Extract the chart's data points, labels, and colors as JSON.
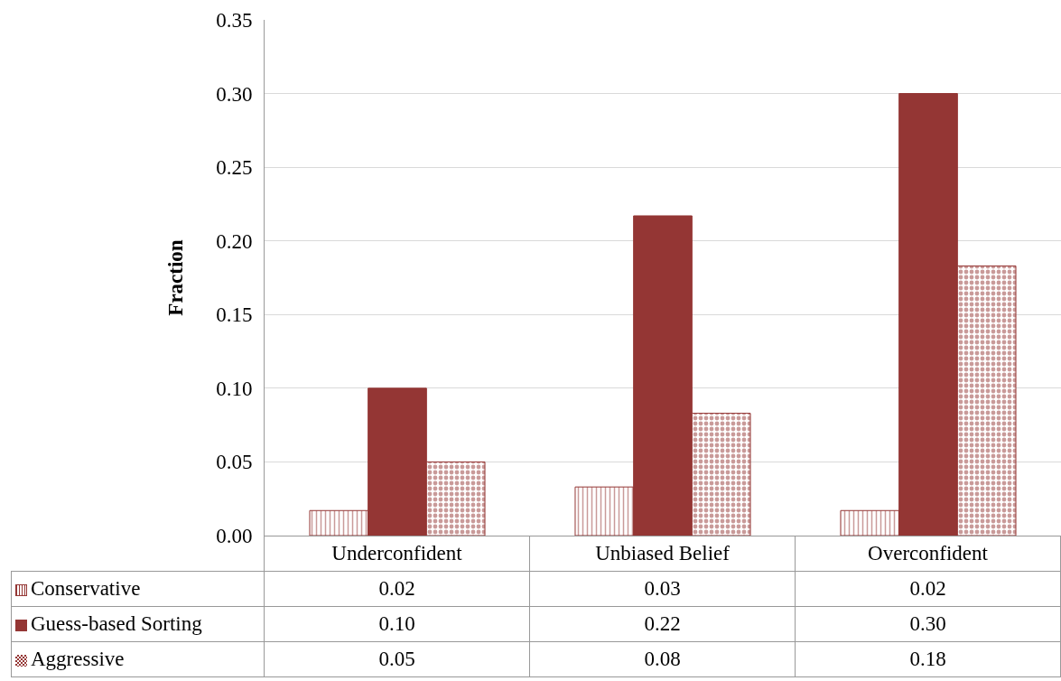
{
  "chart_data": {
    "type": "bar",
    "ylabel": "Fraction",
    "categories": [
      "Underconfident",
      "Unbiased Belief",
      "Overconfident"
    ],
    "series": [
      {
        "name": "Conservative",
        "color": "#943634",
        "values": [
          0.017,
          0.033,
          0.017
        ],
        "value_labels": [
          "0.02",
          "0.03",
          "0.02"
        ]
      },
      {
        "name": "Guess-based Sorting",
        "color": "#943634",
        "values": [
          0.1,
          0.217,
          0.3
        ],
        "value_labels": [
          "0.10",
          "0.22",
          "0.30"
        ]
      },
      {
        "name": "Aggressive",
        "color": "#943634",
        "values": [
          0.05,
          0.083,
          0.183
        ],
        "value_labels": [
          "0.05",
          "0.08",
          "0.18"
        ]
      }
    ],
    "ylim": [
      0,
      0.35
    ],
    "yticks": [
      {
        "value": 0,
        "label": "0.00"
      },
      {
        "value": 0.05,
        "label": "0.05"
      },
      {
        "value": 0.1,
        "label": "0.10"
      },
      {
        "value": 0.15,
        "label": "0.15"
      },
      {
        "value": 0.2,
        "label": "0.20"
      },
      {
        "value": 0.25,
        "label": "0.25"
      },
      {
        "value": 0.3,
        "label": "0.30"
      },
      {
        "value": 0.35,
        "label": "0.35"
      }
    ],
    "grid": "y",
    "legend": "bottom left"
  }
}
